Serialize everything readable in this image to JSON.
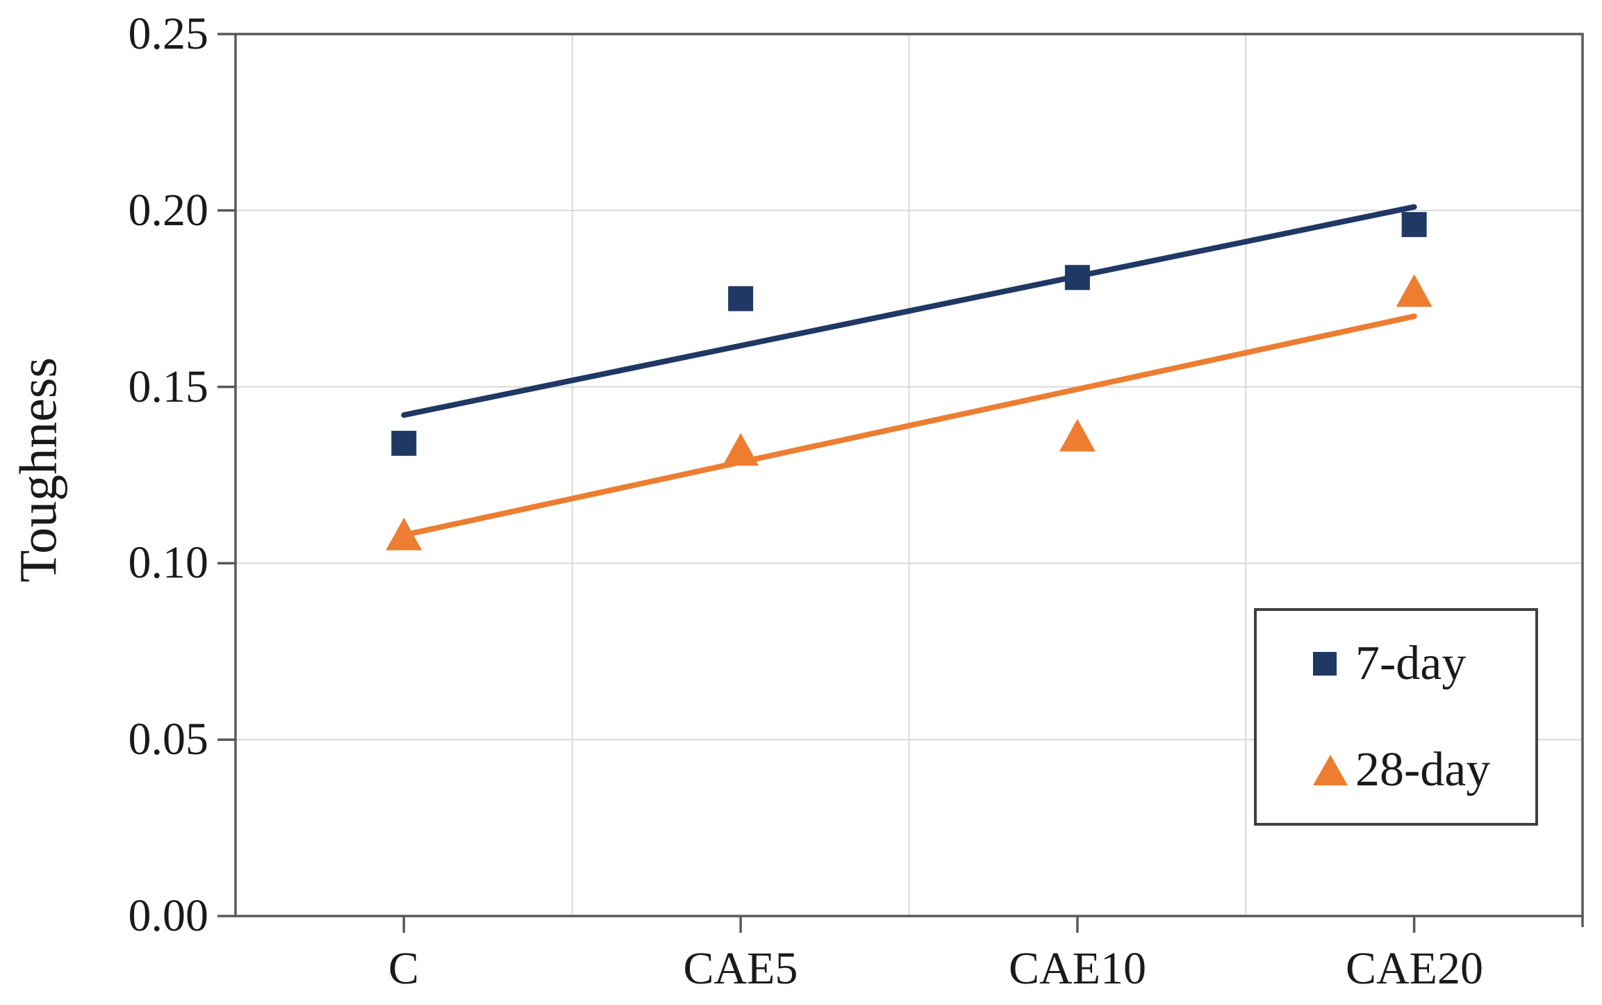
{
  "chart_data": {
    "type": "scatter",
    "title": "",
    "xlabel": "",
    "ylabel": "Toughness",
    "ylim": [
      0,
      0.25
    ],
    "ytick_step": 0.05,
    "y_tick_labels": [
      "0.00",
      "0.05",
      "0.10",
      "0.15",
      "0.20",
      "0.25"
    ],
    "categories": [
      "C",
      "CAE5",
      "CAE10",
      "CAE20"
    ],
    "grid": true,
    "legend_position": "bottom-right",
    "series": [
      {
        "name": "7-day",
        "marker": "square",
        "color": "#1F3864",
        "values": [
          0.134,
          0.175,
          0.181,
          0.196
        ],
        "trendline": {
          "type": "linear",
          "start": 0.142,
          "end": 0.201
        }
      },
      {
        "name": "28-day",
        "marker": "triangle",
        "color": "#ED7D31",
        "values": [
          0.108,
          0.132,
          0.136,
          0.177
        ],
        "trendline": {
          "type": "linear",
          "start": 0.108,
          "end": 0.17
        }
      }
    ]
  },
  "colors": {
    "axis": "#595959",
    "gridline": "#D9D9D9",
    "legend_border": "#3F3F3F",
    "text": "#1A1A1A",
    "background": "#FFFFFF"
  }
}
